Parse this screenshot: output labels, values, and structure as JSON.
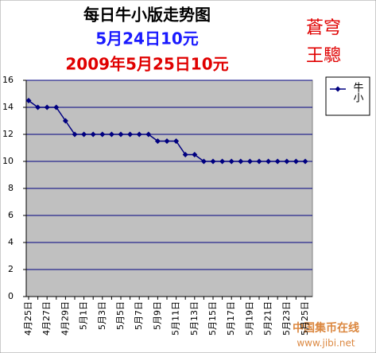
{
  "chart_data": {
    "type": "line",
    "title": "每日牛小版走势图",
    "subtitle": [
      "5月24日10元",
      "2009年5月25日10元"
    ],
    "annotations": [
      "蒼穹",
      "王驄",
      "中国集币在线",
      "www.jibi.net"
    ],
    "categories": [
      "4月25日",
      null,
      "4月27日",
      null,
      "4月29日",
      null,
      "5月1日",
      null,
      "5月3日",
      null,
      "5月5日",
      null,
      "5月7日",
      null,
      "5月9日",
      null,
      "5月11日",
      null,
      "5月13日",
      null,
      "5月15日",
      null,
      "5月17日",
      null,
      "5月19日",
      null,
      "5月21日",
      null,
      "5月23日",
      null,
      "5月25日"
    ],
    "series": [
      {
        "name": "牛小",
        "color": "#000080",
        "values": [
          14.5,
          14,
          14,
          14,
          13,
          12,
          12,
          12,
          12,
          12,
          12,
          12,
          12,
          12,
          11.5,
          11.5,
          11.5,
          10.5,
          10.5,
          10,
          10,
          10,
          10,
          10,
          10,
          10,
          10,
          10,
          10,
          10,
          10
        ]
      }
    ],
    "ylim": [
      0,
      16
    ],
    "yticks": [
      0,
      2,
      4,
      6,
      8,
      10,
      12,
      14,
      16
    ],
    "grid": true,
    "legend": "right"
  }
}
